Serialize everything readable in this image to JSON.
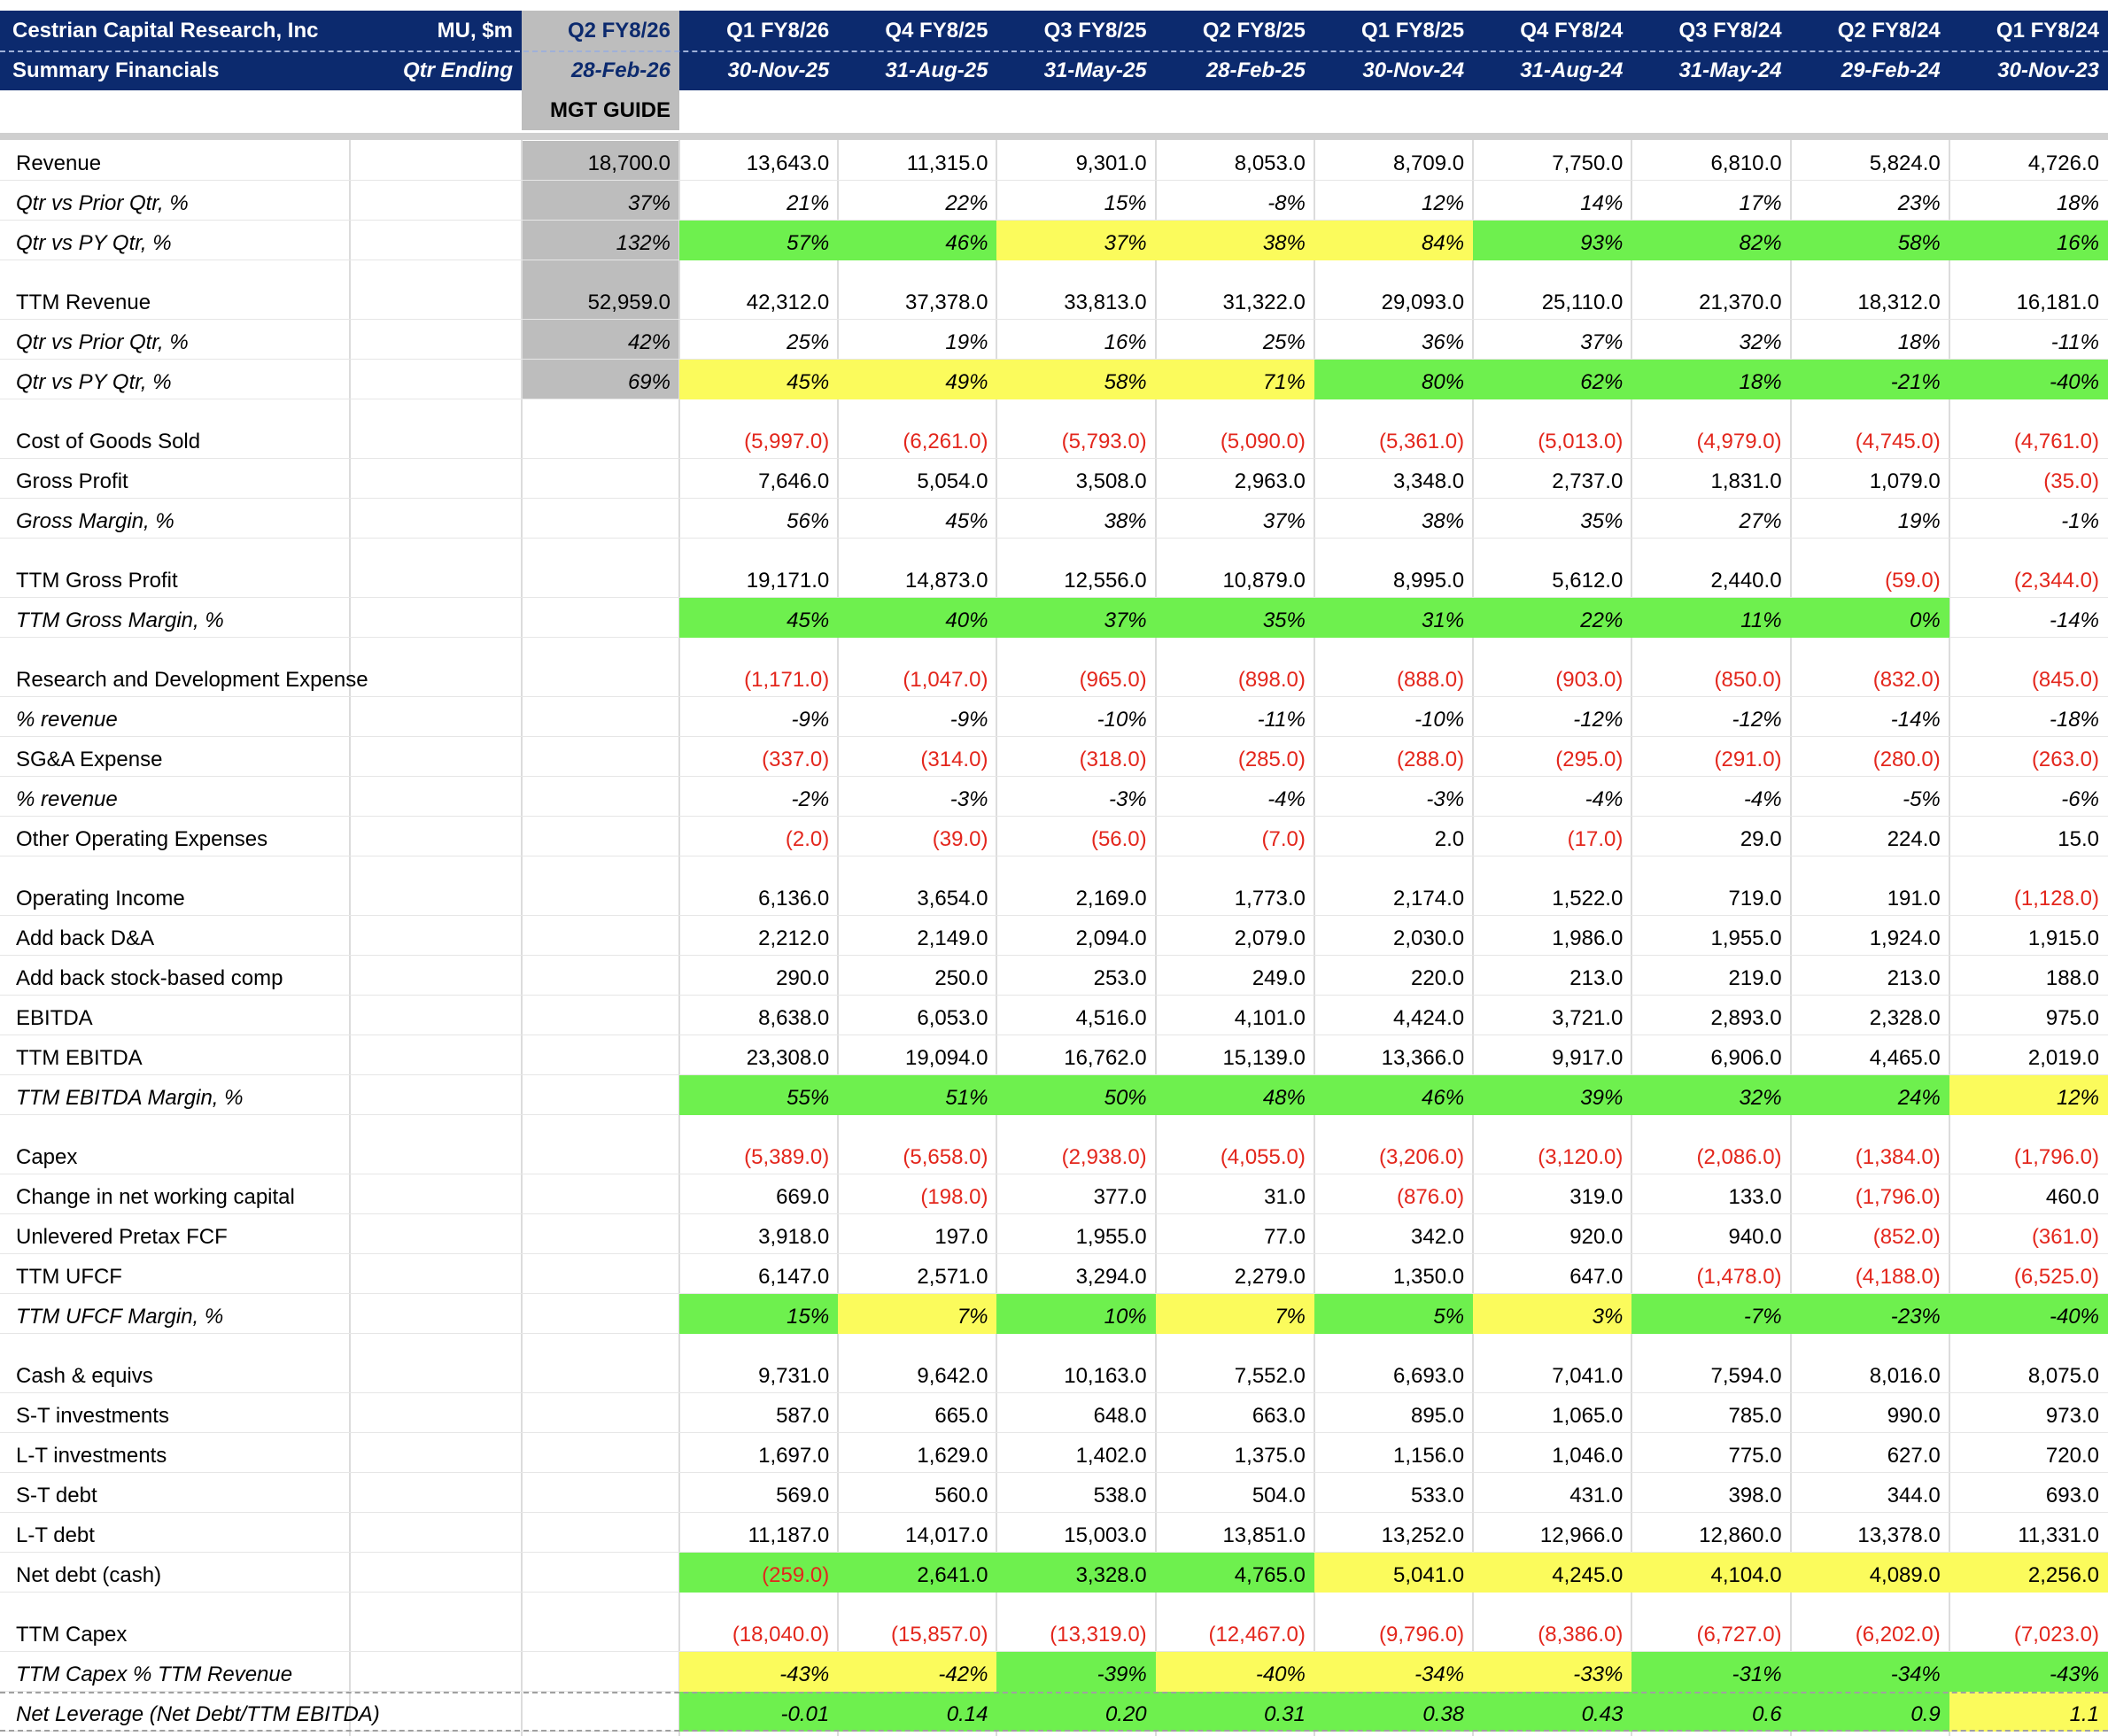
{
  "header": {
    "company": "Cestrian Capital Research, Inc",
    "units": "MU, $m",
    "subtitle": "Summary Financials",
    "period_label": "Qtr Ending",
    "guide_quarter": "Q2 FY8/26",
    "guide_date": "28-Feb-26",
    "guide_label": "MGT GUIDE",
    "quarters": [
      "Q1 FY8/26",
      "Q4 FY8/25",
      "Q3 FY8/25",
      "Q2 FY8/25",
      "Q1 FY8/25",
      "Q4 FY8/24",
      "Q3 FY8/24",
      "Q2 FY8/24",
      "Q1 FY8/24"
    ],
    "dates": [
      "30-Nov-25",
      "31-Aug-25",
      "31-May-25",
      "28-Feb-25",
      "30-Nov-24",
      "31-Aug-24",
      "31-May-24",
      "29-Feb-24",
      "30-Nov-23"
    ]
  },
  "sections": [
    {
      "rows": [
        {
          "label": "Revenue",
          "guide": "18,700.0",
          "values": [
            "13,643.0",
            "11,315.0",
            "9,301.0",
            "8,053.0",
            "8,709.0",
            "7,750.0",
            "6,810.0",
            "5,824.0",
            "4,726.0"
          ]
        },
        {
          "label": "Qtr vs Prior Qtr, %",
          "italic": true,
          "guide": "37%",
          "values": [
            "21%",
            "22%",
            "15%",
            "-8%",
            "12%",
            "14%",
            "17%",
            "23%",
            "18%"
          ]
        },
        {
          "label": "Qtr vs PY Qtr, %",
          "italic": true,
          "guide": "132%",
          "values": [
            "57%",
            "46%",
            "37%",
            "38%",
            "84%",
            "93%",
            "82%",
            "58%",
            "16%"
          ],
          "fill": [
            "#6ef04e",
            "#6ef04e",
            "#fbfb5c",
            "#fbfb5c",
            "#fbfb5c",
            "#6ef04e",
            "#6ef04e",
            "#6ef04e",
            "#6ef04e"
          ]
        }
      ]
    },
    {
      "rows": [
        {
          "label": "TTM Revenue",
          "guide": "52,959.0",
          "values": [
            "42,312.0",
            "37,378.0",
            "33,813.0",
            "31,322.0",
            "29,093.0",
            "25,110.0",
            "21,370.0",
            "18,312.0",
            "16,181.0"
          ]
        },
        {
          "label": "Qtr vs Prior Qtr, %",
          "italic": true,
          "guide": "42%",
          "values": [
            "25%",
            "19%",
            "16%",
            "25%",
            "36%",
            "37%",
            "32%",
            "18%",
            "-11%"
          ]
        },
        {
          "label": "Qtr vs PY Qtr, %",
          "italic": true,
          "guide": "69%",
          "values": [
            "45%",
            "49%",
            "58%",
            "71%",
            "80%",
            "62%",
            "18%",
            "-21%",
            "-40%"
          ],
          "fill": [
            "#fbfb5c",
            "#fbfb5c",
            "#fbfb5c",
            "#fbfb5c",
            "#6ef04e",
            "#6ef04e",
            "#6ef04e",
            "#6ef04e",
            "#6ef04e"
          ]
        }
      ]
    },
    {
      "rows": [
        {
          "label": "Cost of Goods Sold",
          "values": [
            "(5,997.0)",
            "(6,261.0)",
            "(5,793.0)",
            "(5,090.0)",
            "(5,361.0)",
            "(5,013.0)",
            "(4,979.0)",
            "(4,745.0)",
            "(4,761.0)"
          ]
        },
        {
          "label": "Gross Profit",
          "values": [
            "7,646.0",
            "5,054.0",
            "3,508.0",
            "2,963.0",
            "3,348.0",
            "2,737.0",
            "1,831.0",
            "1,079.0",
            "(35.0)"
          ]
        },
        {
          "label": "Gross Margin, %",
          "italic": true,
          "values": [
            "56%",
            "45%",
            "38%",
            "37%",
            "38%",
            "35%",
            "27%",
            "19%",
            "-1%"
          ]
        }
      ]
    },
    {
      "rows": [
        {
          "label": "TTM Gross Profit",
          "values": [
            "19,171.0",
            "14,873.0",
            "12,556.0",
            "10,879.0",
            "8,995.0",
            "5,612.0",
            "2,440.0",
            "(59.0)",
            "(2,344.0)"
          ]
        },
        {
          "label": "TTM Gross Margin, %",
          "italic": true,
          "values": [
            "45%",
            "40%",
            "37%",
            "35%",
            "31%",
            "22%",
            "11%",
            "0%",
            "-14%"
          ],
          "fill": [
            "#6ef04e",
            "#6ef04e",
            "#6ef04e",
            "#6ef04e",
            "#6ef04e",
            "#6ef04e",
            "#6ef04e",
            "#6ef04e",
            null
          ]
        }
      ]
    },
    {
      "rows": [
        {
          "label": "Research and Development Expense",
          "values": [
            "(1,171.0)",
            "(1,047.0)",
            "(965.0)",
            "(898.0)",
            "(888.0)",
            "(903.0)",
            "(850.0)",
            "(832.0)",
            "(845.0)"
          ]
        },
        {
          "label": "% revenue",
          "italic": true,
          "values": [
            "-9%",
            "-9%",
            "-10%",
            "-11%",
            "-10%",
            "-12%",
            "-12%",
            "-14%",
            "-18%"
          ]
        },
        {
          "label": "SG&A Expense",
          "values": [
            "(337.0)",
            "(314.0)",
            "(318.0)",
            "(285.0)",
            "(288.0)",
            "(295.0)",
            "(291.0)",
            "(280.0)",
            "(263.0)"
          ]
        },
        {
          "label": "% revenue",
          "italic": true,
          "values": [
            "-2%",
            "-3%",
            "-3%",
            "-4%",
            "-3%",
            "-4%",
            "-4%",
            "-5%",
            "-6%"
          ]
        },
        {
          "label": "Other Operating Expenses",
          "values": [
            "(2.0)",
            "(39.0)",
            "(56.0)",
            "(7.0)",
            "2.0",
            "(17.0)",
            "29.0",
            "224.0",
            "15.0"
          ]
        }
      ]
    },
    {
      "rows": [
        {
          "label": "Operating Income",
          "values": [
            "6,136.0",
            "3,654.0",
            "2,169.0",
            "1,773.0",
            "2,174.0",
            "1,522.0",
            "719.0",
            "191.0",
            "(1,128.0)"
          ]
        },
        {
          "label": "Add back D&A",
          "values": [
            "2,212.0",
            "2,149.0",
            "2,094.0",
            "2,079.0",
            "2,030.0",
            "1,986.0",
            "1,955.0",
            "1,924.0",
            "1,915.0"
          ]
        },
        {
          "label": "Add back stock-based comp",
          "values": [
            "290.0",
            "250.0",
            "253.0",
            "249.0",
            "220.0",
            "213.0",
            "219.0",
            "213.0",
            "188.0"
          ]
        },
        {
          "label": "EBITDA",
          "values": [
            "8,638.0",
            "6,053.0",
            "4,516.0",
            "4,101.0",
            "4,424.0",
            "3,721.0",
            "2,893.0",
            "2,328.0",
            "975.0"
          ]
        },
        {
          "label": "TTM EBITDA",
          "values": [
            "23,308.0",
            "19,094.0",
            "16,762.0",
            "15,139.0",
            "13,366.0",
            "9,917.0",
            "6,906.0",
            "4,465.0",
            "2,019.0"
          ]
        },
        {
          "label": "TTM EBITDA Margin, %",
          "italic": true,
          "values": [
            "55%",
            "51%",
            "50%",
            "48%",
            "46%",
            "39%",
            "32%",
            "24%",
            "12%"
          ],
          "fill": [
            "#6ef04e",
            "#6ef04e",
            "#6ef04e",
            "#6ef04e",
            "#6ef04e",
            "#6ef04e",
            "#6ef04e",
            "#6ef04e",
            "#fbfb5c"
          ]
        }
      ]
    },
    {
      "rows": [
        {
          "label": "Capex",
          "values": [
            "(5,389.0)",
            "(5,658.0)",
            "(2,938.0)",
            "(4,055.0)",
            "(3,206.0)",
            "(3,120.0)",
            "(2,086.0)",
            "(1,384.0)",
            "(1,796.0)"
          ]
        },
        {
          "label": "Change in net working capital",
          "values": [
            "669.0",
            "(198.0)",
            "377.0",
            "31.0",
            "(876.0)",
            "319.0",
            "133.0",
            "(1,796.0)",
            "460.0"
          ]
        },
        {
          "label": "Unlevered Pretax FCF",
          "values": [
            "3,918.0",
            "197.0",
            "1,955.0",
            "77.0",
            "342.0",
            "920.0",
            "940.0",
            "(852.0)",
            "(361.0)"
          ]
        },
        {
          "label": "TTM UFCF",
          "values": [
            "6,147.0",
            "2,571.0",
            "3,294.0",
            "2,279.0",
            "1,350.0",
            "647.0",
            "(1,478.0)",
            "(4,188.0)",
            "(6,525.0)"
          ]
        },
        {
          "label": "TTM UFCF Margin, %",
          "italic": true,
          "values": [
            "15%",
            "7%",
            "10%",
            "7%",
            "5%",
            "3%",
            "-7%",
            "-23%",
            "-40%"
          ],
          "fill": [
            "#6ef04e",
            "#fbfb5c",
            "#6ef04e",
            "#fbfb5c",
            "#6ef04e",
            "#fbfb5c",
            "#6ef04e",
            "#6ef04e",
            "#6ef04e"
          ]
        }
      ]
    },
    {
      "rows": [
        {
          "label": "Cash & equivs",
          "values": [
            "9,731.0",
            "9,642.0",
            "10,163.0",
            "7,552.0",
            "6,693.0",
            "7,041.0",
            "7,594.0",
            "8,016.0",
            "8,075.0"
          ]
        },
        {
          "label": "S-T investments",
          "values": [
            "587.0",
            "665.0",
            "648.0",
            "663.0",
            "895.0",
            "1,065.0",
            "785.0",
            "990.0",
            "973.0"
          ]
        },
        {
          "label": "L-T investments",
          "values": [
            "1,697.0",
            "1,629.0",
            "1,402.0",
            "1,375.0",
            "1,156.0",
            "1,046.0",
            "775.0",
            "627.0",
            "720.0"
          ]
        },
        {
          "label": "S-T debt",
          "values": [
            "569.0",
            "560.0",
            "538.0",
            "504.0",
            "533.0",
            "431.0",
            "398.0",
            "344.0",
            "693.0"
          ]
        },
        {
          "label": "L-T debt",
          "values": [
            "11,187.0",
            "14,017.0",
            "15,003.0",
            "13,851.0",
            "13,252.0",
            "12,966.0",
            "12,860.0",
            "13,378.0",
            "11,331.0"
          ]
        },
        {
          "label": "Net debt (cash)",
          "values": [
            "(259.0)",
            "2,641.0",
            "3,328.0",
            "4,765.0",
            "5,041.0",
            "4,245.0",
            "4,104.0",
            "4,089.0",
            "2,256.0"
          ],
          "fill": [
            "#6ef04e",
            "#6ef04e",
            "#6ef04e",
            "#6ef04e",
            "#fbfb5c",
            "#fbfb5c",
            "#fbfb5c",
            "#fbfb5c",
            "#fbfb5c"
          ]
        }
      ]
    },
    {
      "rows": [
        {
          "label": "TTM Capex",
          "values": [
            "(18,040.0)",
            "(15,857.0)",
            "(13,319.0)",
            "(12,467.0)",
            "(9,796.0)",
            "(8,386.0)",
            "(6,727.0)",
            "(6,202.0)",
            "(7,023.0)"
          ]
        },
        {
          "label": "TTM Capex % TTM Revenue",
          "italic": true,
          "values": [
            "-43%",
            "-42%",
            "-39%",
            "-40%",
            "-34%",
            "-33%",
            "-31%",
            "-34%",
            "-43%"
          ],
          "fill": [
            "#fbfb5c",
            "#fbfb5c",
            "#6ef04e",
            "#fbfb5c",
            "#fbfb5c",
            "#fbfb5c",
            "#6ef04e",
            "#6ef04e",
            "#6ef04e"
          ]
        },
        {
          "label": "Net Leverage (Net Debt/TTM EBITDA)",
          "italic": true,
          "values": [
            "-0.01",
            "0.14",
            "0.20",
            "0.31",
            "0.38",
            "0.43",
            "0.6",
            "0.9",
            "1.1"
          ],
          "fill": [
            "#6ef04e",
            "#6ef04e",
            "#6ef04e",
            "#6ef04e",
            "#6ef04e",
            "#6ef04e",
            "#6ef04e",
            "#6ef04e",
            "#fbfb5c"
          ]
        }
      ]
    }
  ]
}
